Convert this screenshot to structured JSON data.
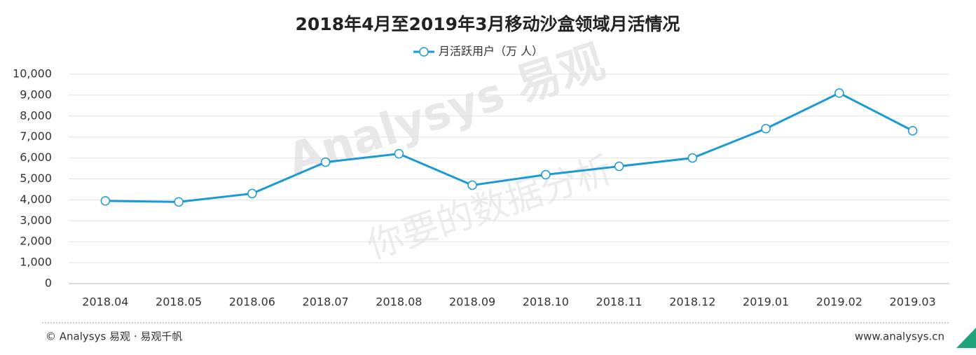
{
  "chart_data": {
    "type": "line",
    "title": "2018年4月至2019年3月移动沙盒领域月活情况",
    "categories": [
      "2018.04",
      "2018.05",
      "2018.06",
      "2018.07",
      "2018.08",
      "2018.09",
      "2018.10",
      "2018.11",
      "2018.12",
      "2019.01",
      "2019.02",
      "2019.03"
    ],
    "series": [
      {
        "name": "月活跃用户（万 人）",
        "color": "#1a9ad6",
        "values": [
          3950,
          3900,
          4300,
          5800,
          6200,
          4700,
          5200,
          5600,
          6000,
          7400,
          9100,
          7300
        ]
      }
    ],
    "ylim": [
      0,
      10000
    ],
    "yticks": [
      0,
      {
        "value": 1000,
        "label": "1,000"
      },
      {
        "value": 2000,
        "label": "2,000"
      },
      {
        "value": 3000,
        "label": "3,000"
      },
      {
        "value": 4000,
        "label": "4,000"
      },
      {
        "value": 5000,
        "label": "5,000"
      },
      {
        "value": 6000,
        "label": "6,000"
      },
      {
        "value": 7000,
        "label": "7,000"
      },
      {
        "value": 8000,
        "label": "8,000"
      },
      {
        "value": 9000,
        "label": "9,000"
      },
      {
        "value": 10000,
        "label": "10,000"
      }
    ],
    "grid": true,
    "legend": "top",
    "watermark": [
      "Analysys 易观",
      "你要的数据分析"
    ],
    "footer_left": "© Analysys 易观 · 易观千帆",
    "footer_right": "www.analysys.cn"
  }
}
